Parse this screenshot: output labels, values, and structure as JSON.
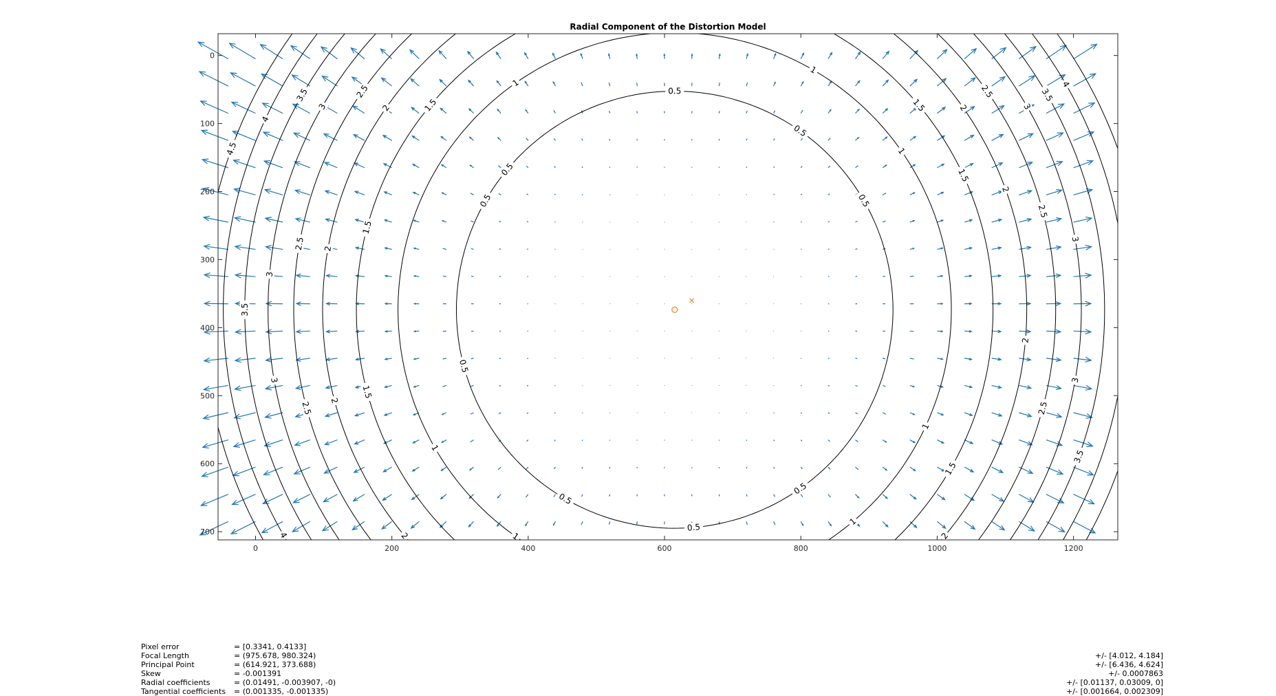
{
  "chart_data": {
    "type": "quiver-contour",
    "title": "Radial Component of the Distortion Model",
    "xlabel": "",
    "ylabel": "",
    "xlim": [
      -55,
      1265
    ],
    "ylim": [
      712,
      -32
    ],
    "y_reversed": true,
    "xticks": [
      0,
      200,
      400,
      600,
      800,
      1000,
      1200
    ],
    "yticks": [
      0,
      100,
      200,
      300,
      400,
      500,
      600,
      700
    ],
    "grid": false,
    "legend": "none",
    "colors": {
      "arrows": "#1f77b4",
      "contours": "#000000",
      "markers": "#f28e2b",
      "axis": "#262626"
    },
    "distortion_center": [
      614.921,
      373.688
    ],
    "image_center": [
      640,
      360
    ],
    "contour_levels": [
      0.5,
      1,
      1.5,
      2,
      2.5,
      3,
      3.5,
      4,
      4.5
    ],
    "contour_radii_x": [
      0.5,
      1,
      1.5,
      2,
      2.5,
      3,
      3.5,
      4,
      4.5
    ],
    "contour_radii_y": [
      0.5,
      1,
      1.5,
      2,
      2.5,
      3,
      3.5,
      4,
      4.5
    ],
    "contour_label_positions": [
      {
        "level": 0.5,
        "angles": [
          140,
          30,
          55,
          90,
          150,
          195,
          240,
          305,
          275
        ]
      },
      {
        "level": 1,
        "angles": [
          125,
          60,
          210,
          235,
          250,
          280,
          335,
          310,
          35
        ]
      },
      {
        "level": 1.5,
        "angles": [
          140,
          165,
          195,
          235,
          300,
          330,
          40,
          25
        ]
      },
      {
        "level": 2,
        "angles": [
          145,
          170,
          195,
          220,
          320,
          355,
          20,
          35
        ]
      },
      {
        "level": 2.5,
        "angles": [
          145,
          170,
          195,
          225,
          320,
          345,
          15,
          35
        ]
      },
      {
        "level": 3,
        "angles": [
          150,
          175,
          190,
          220,
          325,
          350,
          10,
          30
        ]
      },
      {
        "level": 3.5,
        "angles": [
          150,
          180,
          215,
          325,
          340,
          30
        ]
      },
      {
        "level": 4,
        "angles": [
          155,
          210,
          325,
          30
        ]
      },
      {
        "level": 4.5,
        "angles": [
          160
        ]
      }
    ],
    "quiver_grid": {
      "x_start": -40,
      "x_step": 40,
      "x_count": 32,
      "y_start": -35,
      "y_step": 40,
      "y_count": 19
    },
    "distortion_model": {
      "k1": 0.01491,
      "k2": -0.003907,
      "k3": 0,
      "fx": 975.678,
      "fy": 980.324
    }
  },
  "info": {
    "rows": [
      {
        "name": "Pixel error",
        "value": "= [0.3341, 0.4133]",
        "uncertainty": ""
      },
      {
        "name": "Focal Length",
        "value": "= (975.678, 980.324)",
        "uncertainty": "+/- [4.012, 4.184]"
      },
      {
        "name": "Principal Point",
        "value": "= (614.921, 373.688)",
        "uncertainty": "+/- [6.436, 4.624]"
      },
      {
        "name": "Skew",
        "value": "= -0.001391",
        "uncertainty": "+/- 0.0007863"
      },
      {
        "name": "Radial coefficients",
        "value": "= (0.01491, -0.003907, -0)",
        "uncertainty": "+/- [0.01137, 0.03009, 0]"
      },
      {
        "name": "Tangential coefficients",
        "value": "= (0.001335, -0.001335)",
        "uncertainty": "+/- [0.001664, 0.002309]"
      }
    ]
  }
}
